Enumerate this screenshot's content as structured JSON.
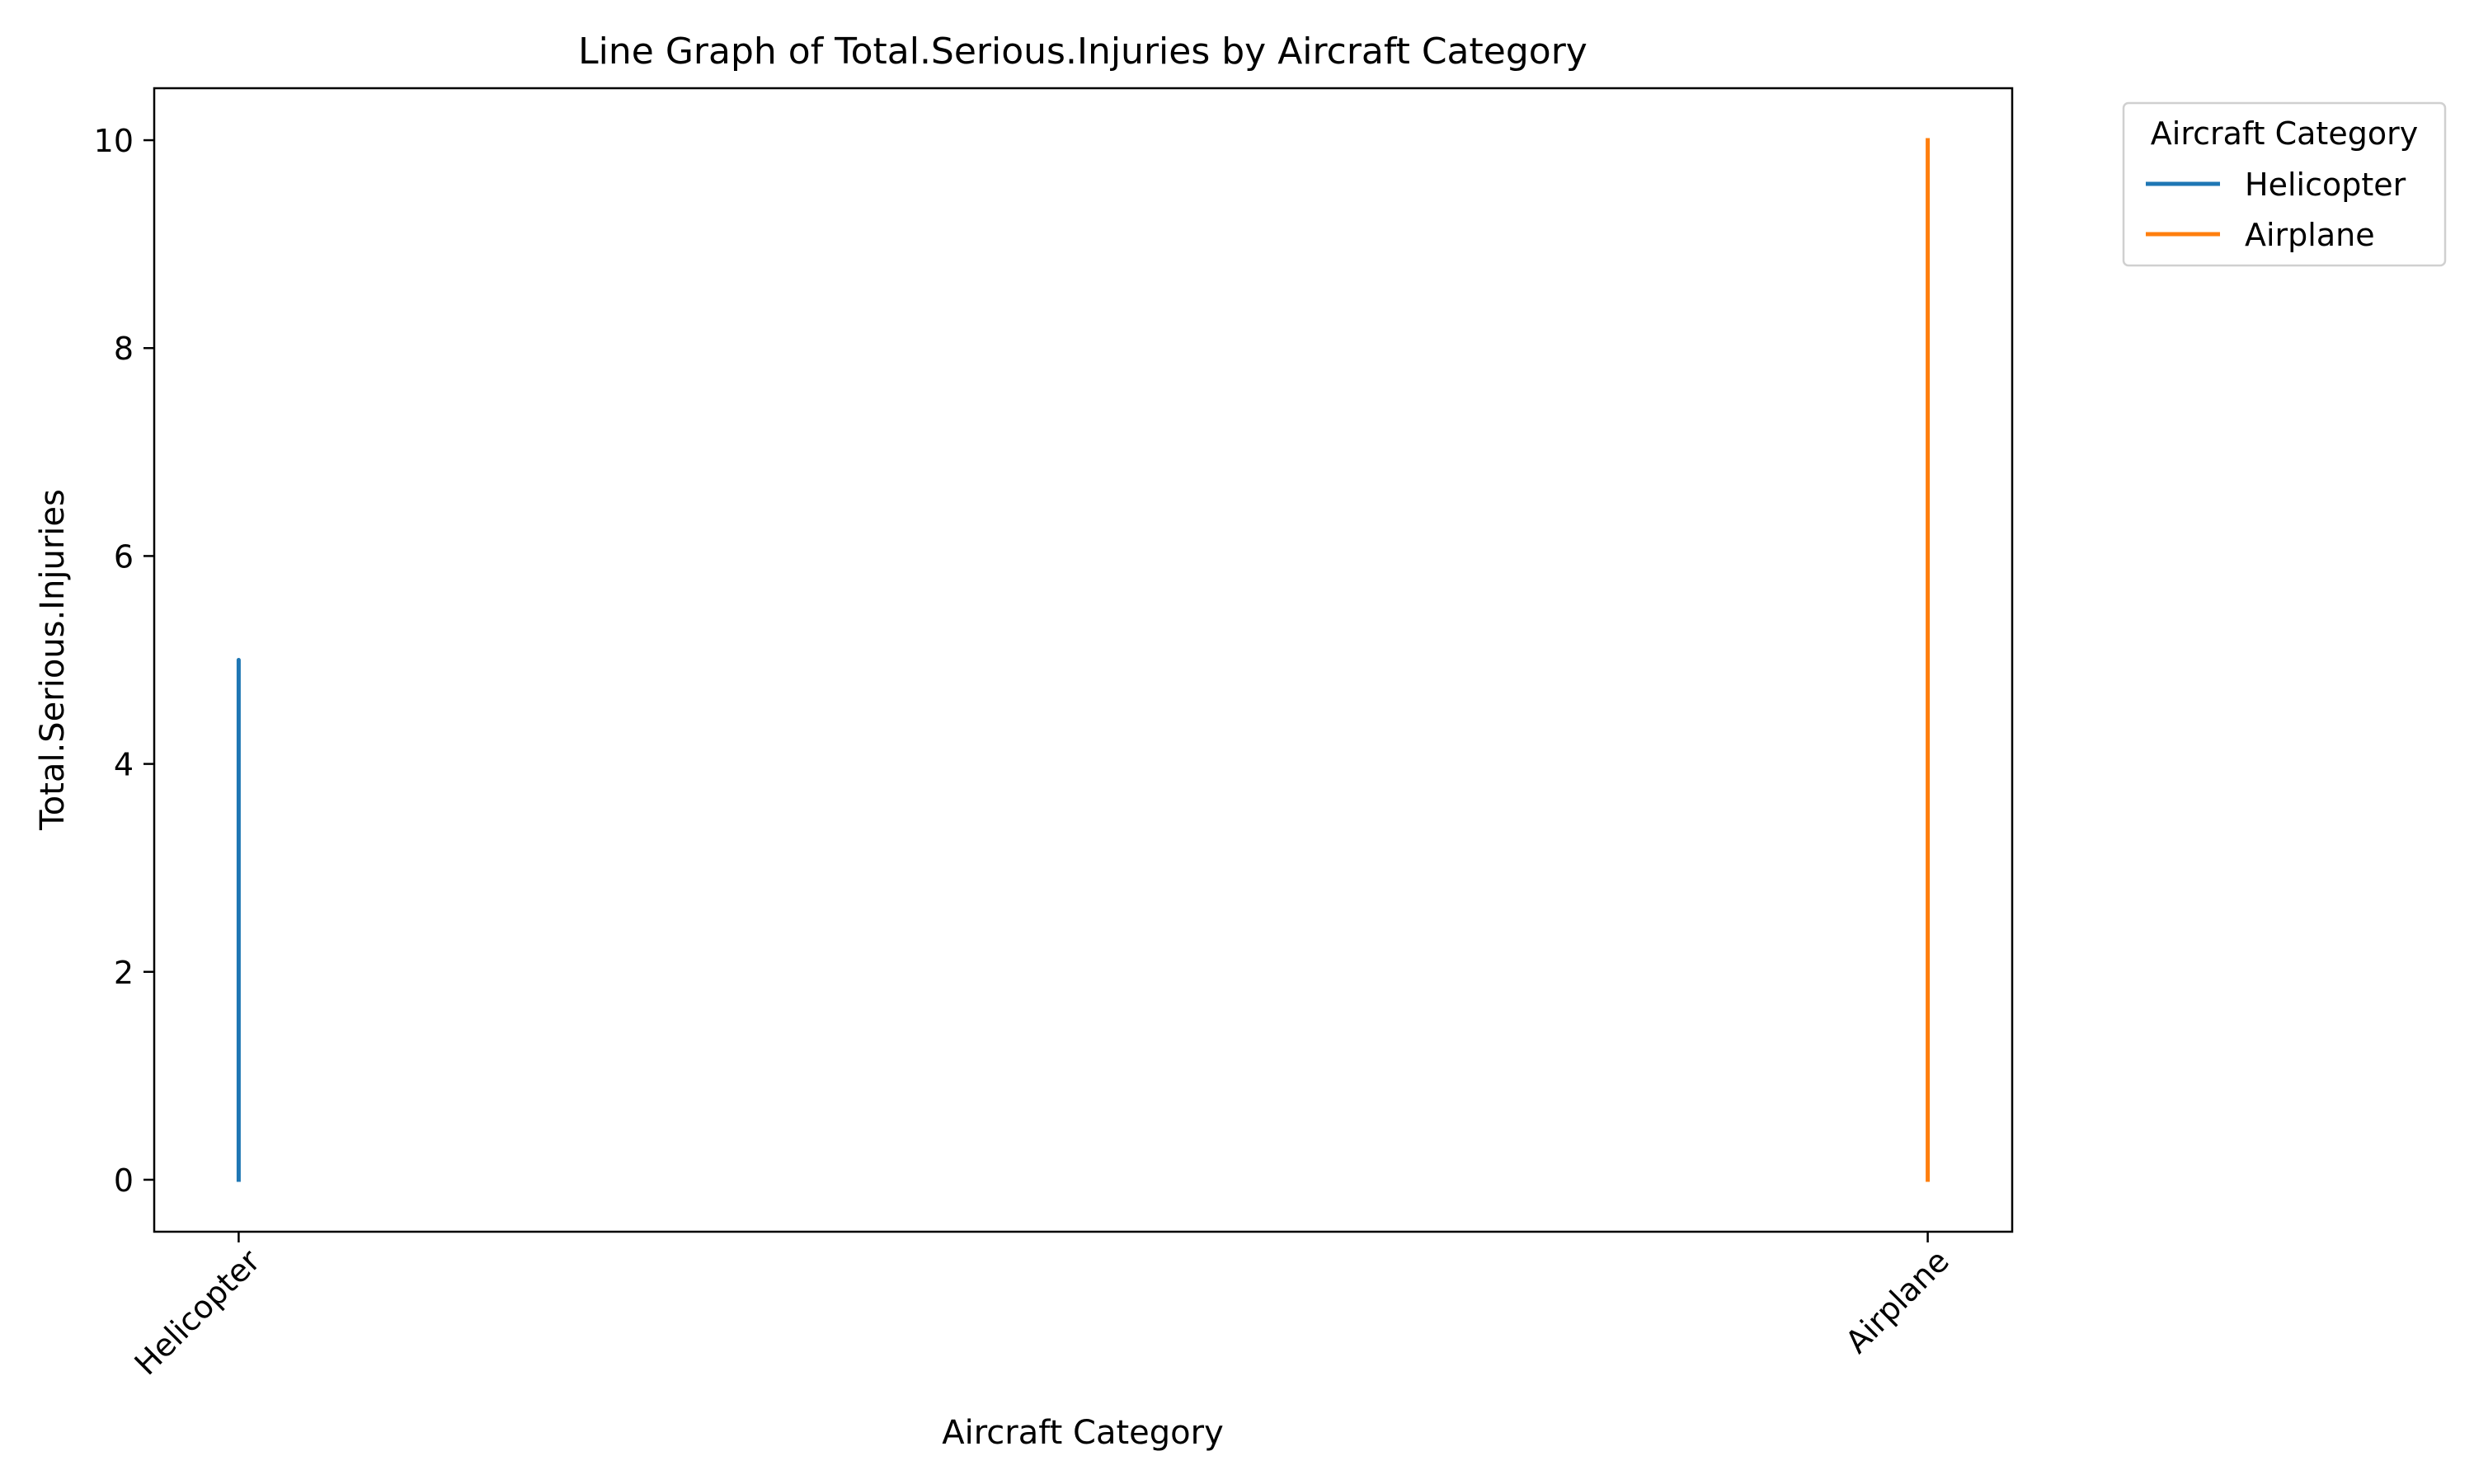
{
  "chart_data": {
    "type": "line",
    "title": "Line Graph of Total.Serious.Injuries by Aircraft Category",
    "xlabel": "Aircraft Category",
    "ylabel": "Total.Serious.Injuries",
    "categories": [
      "Helicopter",
      "Airplane"
    ],
    "ylim": [
      -0.5,
      10.5
    ],
    "yticks": [
      0,
      2,
      4,
      6,
      8,
      10
    ],
    "grid": false,
    "legend": {
      "title": "Aircraft Category",
      "placement": "outside-top-right"
    },
    "series": [
      {
        "name": "Helicopter",
        "color": "#1f77b4",
        "x": [
          "Helicopter",
          "Helicopter",
          "Helicopter",
          "Helicopter",
          "Helicopter",
          "Helicopter"
        ],
        "values": [
          0,
          5,
          0,
          4,
          0,
          2
        ]
      },
      {
        "name": "Airplane",
        "color": "#ff7f0e",
        "x": [
          "Airplane",
          "Airplane"
        ],
        "values": [
          0,
          10
        ]
      }
    ]
  }
}
